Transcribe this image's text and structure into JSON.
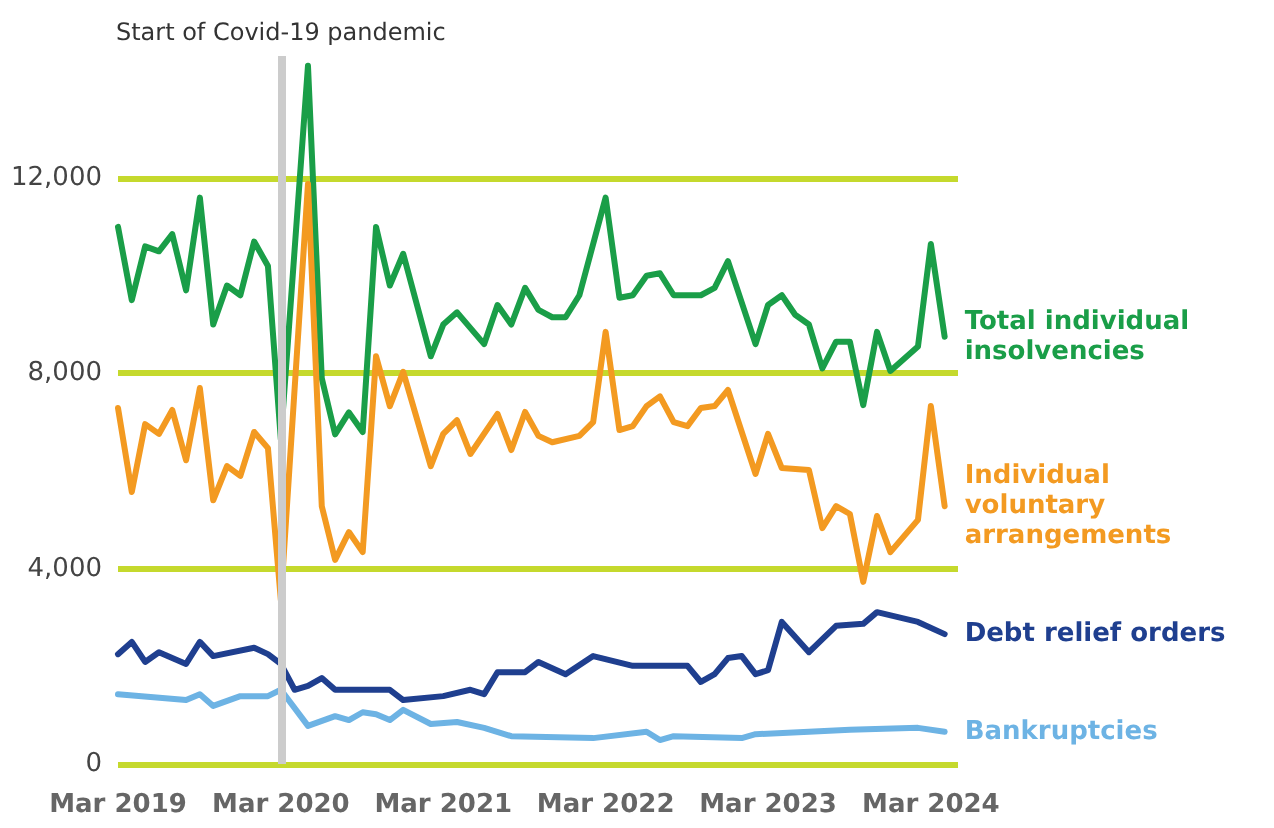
{
  "chart_data": {
    "type": "line",
    "xlim": [
      "2019-03",
      "2024-05"
    ],
    "xticks": [
      {
        "value": "2019-03",
        "label": "Mar 2019"
      },
      {
        "value": "2020-03",
        "label": "Mar 2020"
      },
      {
        "value": "2021-03",
        "label": "Mar 2021"
      },
      {
        "value": "2022-03",
        "label": "Mar 2022"
      },
      {
        "value": "2023-03",
        "label": "Mar 2023"
      },
      {
        "value": "2024-03",
        "label": "Mar 2024"
      }
    ],
    "ylim": [
      0,
      14500
    ],
    "yticks": [
      {
        "value": 0,
        "label": "0"
      },
      {
        "value": 4000,
        "label": "4,000"
      },
      {
        "value": 8000,
        "label": "8,000"
      },
      {
        "value": 12000,
        "label": "12,000"
      }
    ],
    "grid": "y",
    "legend": false,
    "marker": "none",
    "line_style": "solid",
    "ref_lines": [
      {
        "axis": "x",
        "value": "2020-03",
        "label": "Start of Covid-19 pandemic",
        "color": "#cccccc"
      }
    ],
    "series": [
      {
        "name": "Total individual insolvencies",
        "color": "#1a9e48",
        "x": [
          "2019-03",
          "2019-04",
          "2019-05",
          "2019-06",
          "2019-07",
          "2019-08",
          "2019-09",
          "2019-10",
          "2019-11",
          "2019-12",
          "2020-01",
          "2020-02",
          "2020-03",
          "2020-05",
          "2020-06",
          "2020-07",
          "2020-08",
          "2020-09",
          "2020-10",
          "2020-11",
          "2020-12",
          "2021-02",
          "2021-03",
          "2021-04",
          "2021-06",
          "2021-07",
          "2021-08",
          "2021-09",
          "2021-10",
          "2021-11",
          "2021-12",
          "2022-01",
          "2022-03",
          "2022-04",
          "2022-05",
          "2022-06",
          "2022-07",
          "2022-08",
          "2022-10",
          "2022-11",
          "2022-12",
          "2023-02",
          "2023-03",
          "2023-04",
          "2023-05",
          "2023-06",
          "2023-07",
          "2023-08",
          "2023-09",
          "2023-10",
          "2023-11",
          "2023-12",
          "2024-02",
          "2024-03",
          "2024-04"
        ],
        "values": [
          11000,
          9500,
          10600,
          10500,
          10850,
          9700,
          11600,
          9000,
          9800,
          9600,
          10700,
          10200,
          6650,
          14300,
          7900,
          6750,
          7200,
          6800,
          11000,
          9800,
          10450,
          8350,
          9000,
          9250,
          8600,
          9400,
          9000,
          9750,
          9300,
          9150,
          9150,
          9600,
          11600,
          9550,
          9600,
          10000,
          10050,
          9600,
          9600,
          9750,
          10300,
          8600,
          9400,
          9600,
          9200,
          9000,
          8100,
          8650,
          8650,
          7350,
          8850,
          8050,
          8550,
          10650,
          8750
        ]
      },
      {
        "name": "Individual voluntary arrangements",
        "color": "#f39a21",
        "x": [
          "2019-03",
          "2019-04",
          "2019-05",
          "2019-06",
          "2019-07",
          "2019-08",
          "2019-09",
          "2019-10",
          "2019-11",
          "2019-12",
          "2020-01",
          "2020-02",
          "2020-03",
          "2020-05",
          "2020-06",
          "2020-07",
          "2020-08",
          "2020-09",
          "2020-10",
          "2020-11",
          "2020-12",
          "2021-02",
          "2021-03",
          "2021-04",
          "2021-05",
          "2021-07",
          "2021-08",
          "2021-09",
          "2021-10",
          "2021-11",
          "2022-01",
          "2022-02",
          "2022-03",
          "2022-04",
          "2022-05",
          "2022-06",
          "2022-07",
          "2022-08",
          "2022-09",
          "2022-10",
          "2022-11",
          "2022-12",
          "2023-02",
          "2023-03",
          "2023-04",
          "2023-06",
          "2023-07",
          "2023-08",
          "2023-09",
          "2023-10",
          "2023-11",
          "2023-12",
          "2024-02",
          "2024-03",
          "2024-04"
        ],
        "values": [
          7290,
          5570,
          6960,
          6760,
          7250,
          6220,
          7700,
          5400,
          6100,
          5900,
          6800,
          6470,
          3360,
          11880,
          5280,
          4180,
          4750,
          4340,
          8350,
          7330,
          8030,
          6100,
          6760,
          7040,
          6350,
          7170,
          6430,
          7210,
          6720,
          6590,
          6720,
          7000,
          8850,
          6840,
          6920,
          7330,
          7530,
          7000,
          6920,
          7290,
          7330,
          7660,
          5940,
          6760,
          6060,
          6020,
          4830,
          5280,
          5120,
          3730,
          5080,
          4340,
          5000,
          7330,
          5280
        ]
      },
      {
        "name": "Debt relief orders",
        "color": "#1f3f8f",
        "x": [
          "2019-03",
          "2019-04",
          "2019-05",
          "2019-06",
          "2019-08",
          "2019-09",
          "2019-10",
          "2020-01",
          "2020-02",
          "2020-03",
          "2020-04",
          "2020-05",
          "2020-06",
          "2020-07",
          "2020-11",
          "2020-12",
          "2021-03",
          "2021-05",
          "2021-06",
          "2021-07",
          "2021-09",
          "2021-10",
          "2021-12",
          "2022-02",
          "2022-05",
          "2022-09",
          "2022-10",
          "2022-11",
          "2022-12",
          "2023-01",
          "2023-02",
          "2023-03",
          "2023-04",
          "2023-06",
          "2023-08",
          "2023-10",
          "2023-11",
          "2024-02",
          "2024-04"
        ],
        "values": [
          2250,
          2500,
          2090,
          2290,
          2050,
          2500,
          2210,
          2380,
          2250,
          2050,
          1520,
          1600,
          1760,
          1520,
          1520,
          1310,
          1390,
          1520,
          1430,
          1880,
          1880,
          2090,
          1840,
          2210,
          2010,
          2010,
          1680,
          1840,
          2170,
          2210,
          1840,
          1920,
          2910,
          2290,
          2830,
          2870,
          3110,
          2910,
          2660
        ]
      },
      {
        "name": "Bankruptcies",
        "color": "#6db3e4",
        "x": [
          "2019-03",
          "2019-08",
          "2019-09",
          "2019-10",
          "2019-12",
          "2020-02",
          "2020-03",
          "2020-05",
          "2020-07",
          "2020-08",
          "2020-09",
          "2020-10",
          "2020-11",
          "2020-12",
          "2021-02",
          "2021-04",
          "2021-06",
          "2021-08",
          "2022-02",
          "2022-06",
          "2022-07",
          "2022-08",
          "2023-01",
          "2023-02",
          "2023-06",
          "2023-09",
          "2024-02",
          "2024-04"
        ],
        "values": [
          1430,
          1310,
          1430,
          1190,
          1390,
          1390,
          1520,
          780,
          980,
          900,
          1060,
          1020,
          900,
          1110,
          820,
          860,
          740,
          570,
          530,
          660,
          490,
          570,
          530,
          610,
          660,
          700,
          740,
          660
        ]
      }
    ]
  }
}
